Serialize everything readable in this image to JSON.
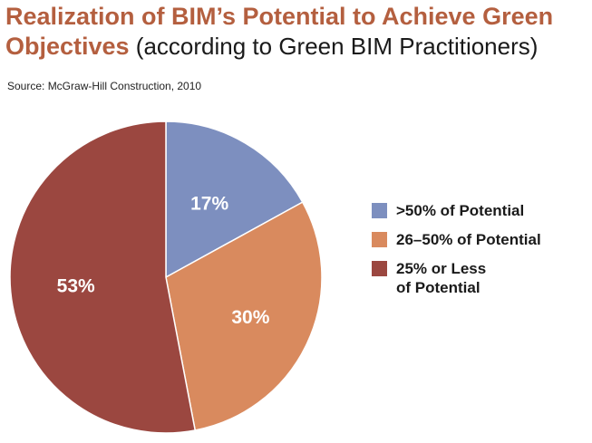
{
  "title_bold": "Realization of BIM’s Potential to Achieve Green Objectives",
  "title_rest": " (according to Green BIM Practitioners)",
  "source": "Source: McGraw-Hill Construction, 2010",
  "chart_data": {
    "type": "pie",
    "title": "Realization of BIM’s Potential to Achieve Green Objectives (according to Green BIM Practitioners)",
    "categories": [
      ">50% of Potential",
      "26–50% of Potential",
      "25% or Less\nof Potential"
    ],
    "values": [
      17,
      30,
      53
    ],
    "labels": [
      "17%",
      "30%",
      "53%"
    ],
    "colors": [
      "#7d8fbf",
      "#d98a5e",
      "#9b4740"
    ],
    "start_angle": "12 o'clock",
    "direction": "clockwise",
    "legend_position": "right"
  }
}
